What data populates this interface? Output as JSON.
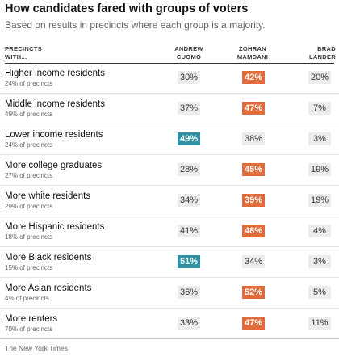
{
  "title": "How candidates fared with groups of voters",
  "subtitle": "Based on results in precincts where each group is a majority.",
  "header": {
    "label_line1": "PRECINCTS",
    "label_line2": "WITH...",
    "columns": [
      {
        "line1": "ANDREW",
        "line2": "CUOMO"
      },
      {
        "line1": "ZOHRAN",
        "line2": "MAMDANI"
      },
      {
        "line1": "BRAD",
        "line2": "LANDER"
      }
    ]
  },
  "colors": {
    "cuomo_winner": "#2f8fa3",
    "mamdani_winner": "#e26b3c",
    "neutral_cell": "#ececec"
  },
  "rows": [
    {
      "name": "Higher income residents",
      "sub": "24% of precincts",
      "cuomo": "30%",
      "mamdani": "42%",
      "lander": "20%",
      "winner": "mamdani"
    },
    {
      "name": "Middle income residents",
      "sub": "49% of precincts",
      "cuomo": "37%",
      "mamdani": "47%",
      "lander": "7%",
      "winner": "mamdani"
    },
    {
      "name": "Lower income residents",
      "sub": "24% of precincts",
      "cuomo": "49%",
      "mamdani": "38%",
      "lander": "3%",
      "winner": "cuomo"
    },
    {
      "name": "More college graduates",
      "sub": "27% of precincts",
      "cuomo": "28%",
      "mamdani": "45%",
      "lander": "19%",
      "winner": "mamdani"
    },
    {
      "name": "More white residents",
      "sub": "29% of precincts",
      "cuomo": "34%",
      "mamdani": "39%",
      "lander": "19%",
      "winner": "mamdani"
    },
    {
      "name": "More Hispanic residents",
      "sub": "18% of precincts",
      "cuomo": "41%",
      "mamdani": "48%",
      "lander": "4%",
      "winner": "mamdani"
    },
    {
      "name": "More Black residents",
      "sub": "15% of precincts",
      "cuomo": "51%",
      "mamdani": "34%",
      "lander": "3%",
      "winner": "cuomo"
    },
    {
      "name": "More Asian residents",
      "sub": "4% of precincts",
      "cuomo": "36%",
      "mamdani": "52%",
      "lander": "5%",
      "winner": "mamdani"
    },
    {
      "name": "More renters",
      "sub": "70% of precincts",
      "cuomo": "33%",
      "mamdani": "47%",
      "lander": "11%",
      "winner": "mamdani"
    }
  ],
  "source": "The New York Times"
}
